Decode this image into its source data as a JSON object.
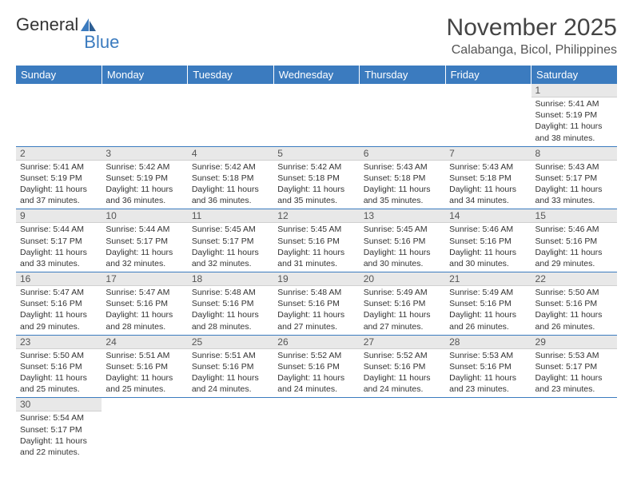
{
  "logo": {
    "text1": "General",
    "text2": "Blue"
  },
  "title": "November 2025",
  "location": "Calabanga, Bicol, Philippines",
  "colors": {
    "header_bg": "#3b7bbf",
    "header_text": "#ffffff",
    "daynum_bg": "#e8e8e8",
    "border": "#3b7bbf",
    "text": "#333333",
    "background": "#ffffff"
  },
  "typography": {
    "title_fontsize": 30,
    "location_fontsize": 16,
    "header_fontsize": 13,
    "daynum_fontsize": 12,
    "body_fontsize": 10.5
  },
  "weekdays": [
    "Sunday",
    "Monday",
    "Tuesday",
    "Wednesday",
    "Thursday",
    "Friday",
    "Saturday"
  ],
  "weeks": [
    [
      null,
      null,
      null,
      null,
      null,
      null,
      {
        "n": "1",
        "sunrise": "5:41 AM",
        "sunset": "5:19 PM",
        "dl": "11 hours and 38 minutes."
      }
    ],
    [
      {
        "n": "2",
        "sunrise": "5:41 AM",
        "sunset": "5:19 PM",
        "dl": "11 hours and 37 minutes."
      },
      {
        "n": "3",
        "sunrise": "5:42 AM",
        "sunset": "5:19 PM",
        "dl": "11 hours and 36 minutes."
      },
      {
        "n": "4",
        "sunrise": "5:42 AM",
        "sunset": "5:18 PM",
        "dl": "11 hours and 36 minutes."
      },
      {
        "n": "5",
        "sunrise": "5:42 AM",
        "sunset": "5:18 PM",
        "dl": "11 hours and 35 minutes."
      },
      {
        "n": "6",
        "sunrise": "5:43 AM",
        "sunset": "5:18 PM",
        "dl": "11 hours and 35 minutes."
      },
      {
        "n": "7",
        "sunrise": "5:43 AM",
        "sunset": "5:18 PM",
        "dl": "11 hours and 34 minutes."
      },
      {
        "n": "8",
        "sunrise": "5:43 AM",
        "sunset": "5:17 PM",
        "dl": "11 hours and 33 minutes."
      }
    ],
    [
      {
        "n": "9",
        "sunrise": "5:44 AM",
        "sunset": "5:17 PM",
        "dl": "11 hours and 33 minutes."
      },
      {
        "n": "10",
        "sunrise": "5:44 AM",
        "sunset": "5:17 PM",
        "dl": "11 hours and 32 minutes."
      },
      {
        "n": "11",
        "sunrise": "5:45 AM",
        "sunset": "5:17 PM",
        "dl": "11 hours and 32 minutes."
      },
      {
        "n": "12",
        "sunrise": "5:45 AM",
        "sunset": "5:16 PM",
        "dl": "11 hours and 31 minutes."
      },
      {
        "n": "13",
        "sunrise": "5:45 AM",
        "sunset": "5:16 PM",
        "dl": "11 hours and 30 minutes."
      },
      {
        "n": "14",
        "sunrise": "5:46 AM",
        "sunset": "5:16 PM",
        "dl": "11 hours and 30 minutes."
      },
      {
        "n": "15",
        "sunrise": "5:46 AM",
        "sunset": "5:16 PM",
        "dl": "11 hours and 29 minutes."
      }
    ],
    [
      {
        "n": "16",
        "sunrise": "5:47 AM",
        "sunset": "5:16 PM",
        "dl": "11 hours and 29 minutes."
      },
      {
        "n": "17",
        "sunrise": "5:47 AM",
        "sunset": "5:16 PM",
        "dl": "11 hours and 28 minutes."
      },
      {
        "n": "18",
        "sunrise": "5:48 AM",
        "sunset": "5:16 PM",
        "dl": "11 hours and 28 minutes."
      },
      {
        "n": "19",
        "sunrise": "5:48 AM",
        "sunset": "5:16 PM",
        "dl": "11 hours and 27 minutes."
      },
      {
        "n": "20",
        "sunrise": "5:49 AM",
        "sunset": "5:16 PM",
        "dl": "11 hours and 27 minutes."
      },
      {
        "n": "21",
        "sunrise": "5:49 AM",
        "sunset": "5:16 PM",
        "dl": "11 hours and 26 minutes."
      },
      {
        "n": "22",
        "sunrise": "5:50 AM",
        "sunset": "5:16 PM",
        "dl": "11 hours and 26 minutes."
      }
    ],
    [
      {
        "n": "23",
        "sunrise": "5:50 AM",
        "sunset": "5:16 PM",
        "dl": "11 hours and 25 minutes."
      },
      {
        "n": "24",
        "sunrise": "5:51 AM",
        "sunset": "5:16 PM",
        "dl": "11 hours and 25 minutes."
      },
      {
        "n": "25",
        "sunrise": "5:51 AM",
        "sunset": "5:16 PM",
        "dl": "11 hours and 24 minutes."
      },
      {
        "n": "26",
        "sunrise": "5:52 AM",
        "sunset": "5:16 PM",
        "dl": "11 hours and 24 minutes."
      },
      {
        "n": "27",
        "sunrise": "5:52 AM",
        "sunset": "5:16 PM",
        "dl": "11 hours and 24 minutes."
      },
      {
        "n": "28",
        "sunrise": "5:53 AM",
        "sunset": "5:16 PM",
        "dl": "11 hours and 23 minutes."
      },
      {
        "n": "29",
        "sunrise": "5:53 AM",
        "sunset": "5:17 PM",
        "dl": "11 hours and 23 minutes."
      }
    ],
    [
      {
        "n": "30",
        "sunrise": "5:54 AM",
        "sunset": "5:17 PM",
        "dl": "11 hours and 22 minutes."
      },
      null,
      null,
      null,
      null,
      null,
      null
    ]
  ],
  "labels": {
    "sunrise": "Sunrise:",
    "sunset": "Sunset:",
    "daylight": "Daylight:"
  }
}
